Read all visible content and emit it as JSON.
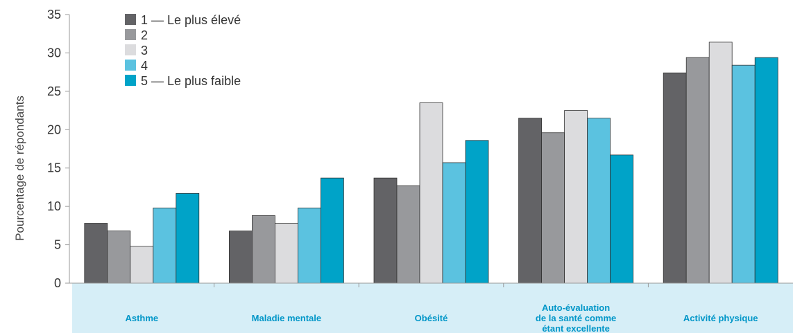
{
  "chart_data": {
    "type": "bar",
    "ylabel": "Pourcentage de répondants",
    "xlabel": "",
    "ylim": [
      0,
      35
    ],
    "yticks": [
      0,
      5,
      10,
      15,
      20,
      25,
      30,
      35
    ],
    "grid": false,
    "legend_position": "top-left",
    "categories": [
      [
        "Asthme"
      ],
      [
        "Maladie mentale"
      ],
      [
        "Obésité"
      ],
      [
        "Auto-évaluation",
        "de la santé comme",
        "étant excellente"
      ],
      [
        "Activité physique"
      ]
    ],
    "series": [
      {
        "name": "1 — Le plus élevé",
        "color": "#636366",
        "values": [
          7.8,
          6.8,
          13.7,
          21.5,
          27.4
        ]
      },
      {
        "name": "2",
        "color": "#98999c",
        "values": [
          6.8,
          8.8,
          12.7,
          19.6,
          29.4
        ]
      },
      {
        "name": "3",
        "color": "#dcdcde",
        "values": [
          4.8,
          7.8,
          23.5,
          22.5,
          31.4
        ]
      },
      {
        "name": "4",
        "color": "#5bc2e0",
        "values": [
          9.8,
          9.8,
          15.7,
          21.5,
          28.4
        ]
      },
      {
        "name": "5 — Le plus faible",
        "color": "#00a3c8",
        "values": [
          11.7,
          13.7,
          18.6,
          16.7,
          29.4
        ]
      }
    ],
    "category_band_color": "#d6eef7"
  }
}
